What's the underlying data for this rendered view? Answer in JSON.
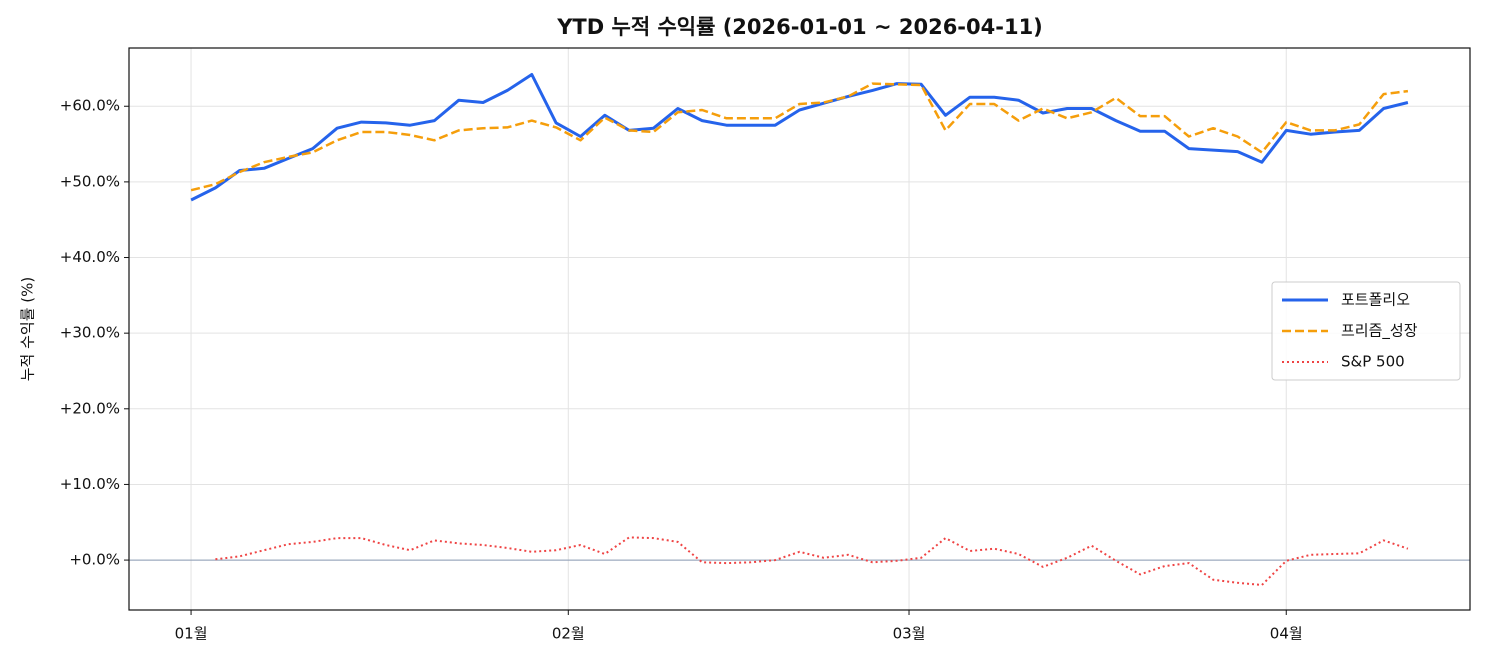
{
  "chart_data": {
    "type": "line",
    "title": "YTD 누적 수익률 (2026-01-01 ~ 2026-04-11)",
    "y_label": "누적 수익률 (%)",
    "x": [
      1,
      3,
      5,
      7,
      9,
      11,
      13,
      15,
      17,
      19,
      21,
      23,
      25,
      27,
      29,
      31,
      33,
      35,
      37,
      39,
      41,
      43,
      45,
      47,
      49,
      51,
      53,
      55,
      57,
      59,
      61,
      63,
      65,
      67,
      69,
      71,
      73,
      75,
      77,
      79,
      81,
      83,
      85,
      87,
      89,
      91,
      93,
      95,
      97,
      99,
      101
    ],
    "xlim": [
      -4.1,
      106.1
    ],
    "xticks": [
      {
        "value": 1,
        "label": "01월"
      },
      {
        "value": 32,
        "label": "02월"
      },
      {
        "value": 60,
        "label": "03월"
      },
      {
        "value": 91,
        "label": "04월"
      }
    ],
    "ylim": [
      -6.6,
      67.7
    ],
    "yticks": [
      {
        "value": 0,
        "label": "+0.0%"
      },
      {
        "value": 10,
        "label": "+10.0%"
      },
      {
        "value": 20,
        "label": "+20.0%"
      },
      {
        "value": 30,
        "label": "+30.0%"
      },
      {
        "value": 40,
        "label": "+40.0%"
      },
      {
        "value": 50,
        "label": "+50.0%"
      },
      {
        "value": 60,
        "label": "+60.0%"
      }
    ],
    "grid": true,
    "legend": "right",
    "series": [
      {
        "name": "포트폴리오",
        "color": "#2563eb",
        "linestyle": "solid",
        "values": [
          47.6,
          49.2,
          51.5,
          51.8,
          53.1,
          54.4,
          57.1,
          57.9,
          57.8,
          57.5,
          58.1,
          60.8,
          60.5,
          62.1,
          64.2,
          57.8,
          56.0,
          58.8,
          56.8,
          57.1,
          59.7,
          58.1,
          57.5,
          57.5,
          57.5,
          59.5,
          60.4,
          61.3,
          62.1,
          63.0,
          62.9,
          58.8,
          61.2,
          61.2,
          60.8,
          59.1,
          59.7,
          59.7,
          58.1,
          56.7,
          56.7,
          54.4,
          54.2,
          54.0,
          52.6,
          56.8,
          56.3,
          56.6,
          56.8,
          59.7,
          60.5
        ]
      },
      {
        "name": "프리즘_성장",
        "color": "#f59e0b",
        "linestyle": "dashed",
        "values": [
          48.9,
          49.7,
          51.3,
          52.6,
          53.3,
          53.9,
          55.5,
          56.6,
          56.6,
          56.2,
          55.5,
          56.8,
          57.1,
          57.2,
          58.1,
          57.2,
          55.5,
          58.5,
          56.8,
          56.6,
          59.2,
          59.5,
          58.4,
          58.4,
          58.4,
          60.3,
          60.5,
          61.3,
          63.0,
          62.9,
          62.8,
          56.8,
          60.3,
          60.3,
          58.1,
          59.7,
          58.4,
          59.2,
          61.1,
          58.7,
          58.7,
          56.0,
          57.1,
          56.0,
          53.9,
          57.9,
          56.8,
          56.8,
          57.6,
          61.6,
          62.0
        ]
      },
      {
        "name": "S&P 500",
        "color": "#ef4444",
        "linestyle": "dotted",
        "values": [
          null,
          0.1,
          0.5,
          1.3,
          2.1,
          2.4,
          2.9,
          2.9,
          2.0,
          1.3,
          2.6,
          2.2,
          2.0,
          1.6,
          1.1,
          1.3,
          2.0,
          0.8,
          3.0,
          2.9,
          2.4,
          -0.3,
          -0.4,
          -0.3,
          0.0,
          1.1,
          0.3,
          0.7,
          -0.3,
          -0.1,
          0.3,
          2.9,
          1.2,
          1.5,
          0.8,
          -0.9,
          0.3,
          1.9,
          -0.1,
          -1.9,
          -0.8,
          -0.4,
          -2.6,
          -3.0,
          -3.3,
          -0.1,
          0.7,
          0.8,
          0.9,
          2.6,
          1.5
        ]
      }
    ]
  }
}
